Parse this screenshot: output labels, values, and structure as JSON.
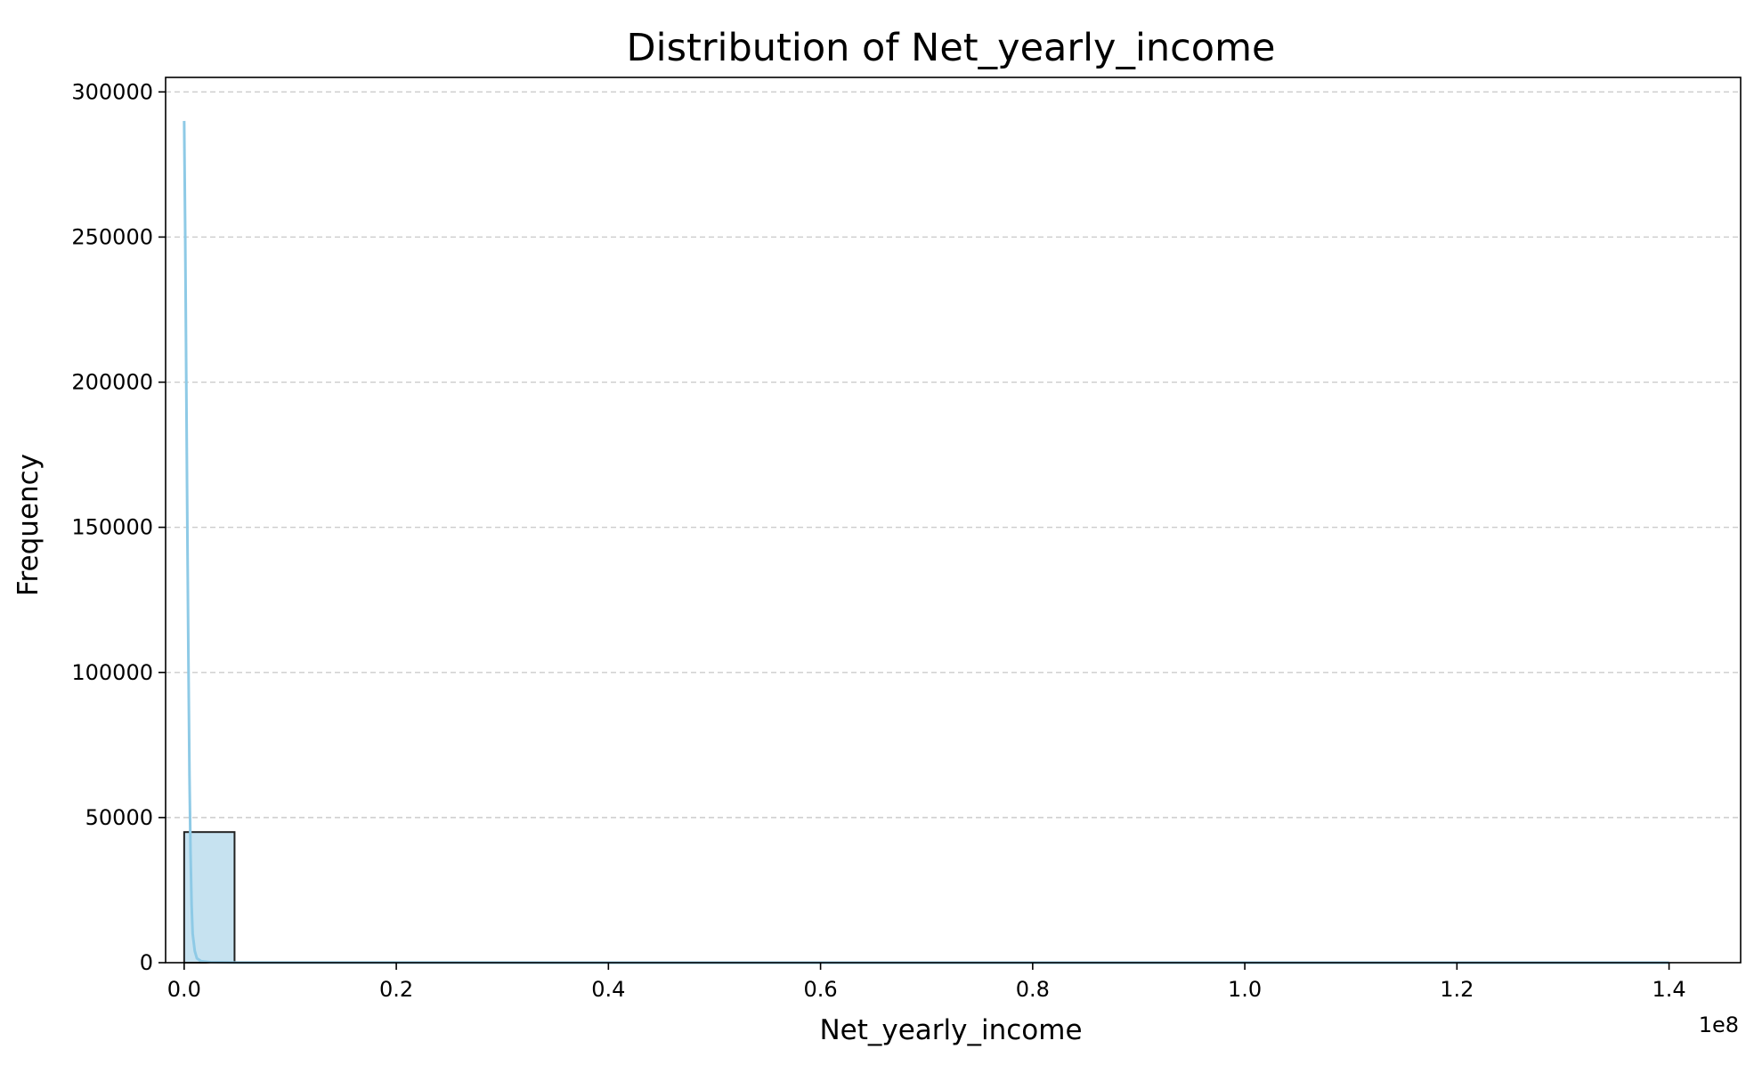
{
  "chart_data": {
    "type": "bar",
    "title": "Distribution of Net_yearly_income",
    "xlabel": "Net_yearly_income",
    "ylabel": "Frequency",
    "x_offset_label": "1e8",
    "xlim": [
      -0.0175,
      1.4675
    ],
    "ylim": [
      0,
      305000
    ],
    "x_ticks": [
      0.0,
      0.2,
      0.4,
      0.6,
      0.8,
      1.0,
      1.2,
      1.4
    ],
    "x_tick_labels": [
      "0.0",
      "0.2",
      "0.4",
      "0.6",
      "0.8",
      "1.0",
      "1.2",
      "1.4"
    ],
    "y_ticks": [
      0,
      50000,
      100000,
      150000,
      200000,
      250000,
      300000
    ],
    "y_tick_labels": [
      "0",
      "50000",
      "100000",
      "150000",
      "200000",
      "250000",
      "300000"
    ],
    "grid": "y-dashed",
    "bars": [
      {
        "x0": 0.0,
        "x1": 0.0475,
        "value": 45000
      }
    ],
    "kde_curve": {
      "x": [
        0.0,
        0.001,
        0.002,
        0.003,
        0.004,
        0.005,
        0.006,
        0.007,
        0.008,
        0.01,
        0.012,
        0.016,
        0.025,
        0.05,
        0.2,
        0.6,
        1.0,
        1.4
      ],
      "y": [
        290000,
        250000,
        200000,
        150000,
        105000,
        65000,
        38000,
        20000,
        10000,
        4000,
        1500,
        500,
        150,
        50,
        20,
        10,
        5,
        5
      ]
    },
    "colors": {
      "bar_fill": "#c6e2f0",
      "bar_edge": "#222222",
      "kde_line": "#8ecae6",
      "grid": "#cccccc",
      "axes": "#000000"
    }
  }
}
